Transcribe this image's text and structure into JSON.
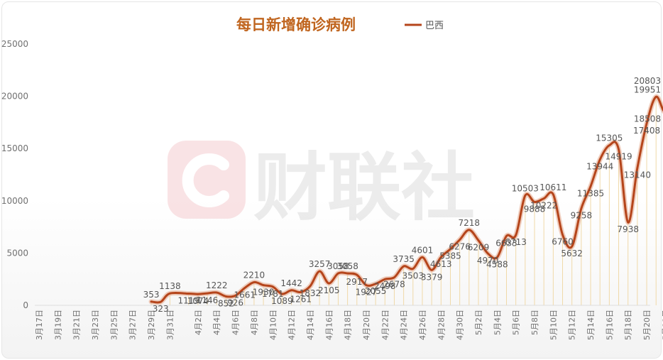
{
  "chart_data": {
    "type": "line",
    "title": "每日新增确诊病例",
    "legend": "top-right",
    "grid": false,
    "series": [
      {
        "name": "巴西"
      }
    ],
    "ylim": [
      0,
      25000
    ],
    "yticks": [
      "0",
      "5000",
      "10000",
      "15000",
      "20000",
      "25000"
    ],
    "x_tick_labels": [
      "3月17日",
      "3月19日",
      "3月21日",
      "3月23日",
      "3月25日",
      "3月27日",
      "3月29日",
      "3月31日",
      "4月2日",
      "4月4日",
      "4月6日",
      "4月8日",
      "4月10日",
      "4月12日",
      "4月14日",
      "4月16日",
      "4月18日",
      "4月20日",
      "4月22日",
      "4月24日",
      "4月26日",
      "4月28日",
      "4月30日",
      "5月2日",
      "5月4日",
      "5月6日",
      "5月8日",
      "5月10日",
      "5月12日",
      "5月14日",
      "5月16日",
      "5月18日",
      "5月20日",
      "5月22日"
    ],
    "points": [
      {
        "x": "3月29日",
        "y": 353
      },
      {
        "x": "3月30日",
        "y": 323
      },
      {
        "x": "3月31日",
        "y": 1138
      },
      {
        "x": "4月1日",
        "y": 1119
      },
      {
        "x": "4月2日",
        "y": 1074
      },
      {
        "x": "4月3日",
        "y": 1146
      },
      {
        "x": "4月4日",
        "y": 1222
      },
      {
        "x": "4月5日",
        "y": 852
      },
      {
        "x": "4月6日",
        "y": 926
      },
      {
        "x": "4月7日",
        "y": 1661
      },
      {
        "x": "4月8日",
        "y": 2210
      },
      {
        "x": "4月9日",
        "y": 1930
      },
      {
        "x": "4月10日",
        "y": 1781
      },
      {
        "x": "4月11日",
        "y": 1089
      },
      {
        "x": "4月12日",
        "y": 1442
      },
      {
        "x": "4月13日",
        "y": 1261
      },
      {
        "x": "4月14日",
        "y": 1832
      },
      {
        "x": "4月15日",
        "y": 3257
      },
      {
        "x": "4月16日",
        "y": 2105
      },
      {
        "x": "4月17日",
        "y": 3058
      },
      {
        "x": "4月18日",
        "y": 3058
      },
      {
        "x": "4月19日",
        "y": 2917
      },
      {
        "x": "4月20日",
        "y": 1927
      },
      {
        "x": "4月21日",
        "y": 2055
      },
      {
        "x": "4月22日",
        "y": 2498
      },
      {
        "x": "4月23日",
        "y": 2678
      },
      {
        "x": "4月24日",
        "y": 3735
      },
      {
        "x": "4月25日",
        "y": 3503
      },
      {
        "x": "4月26日",
        "y": 4601
      },
      {
        "x": "4月27日",
        "y": 3379
      },
      {
        "x": "4月28日",
        "y": 4613
      },
      {
        "x": "4月29日",
        "y": 5385
      },
      {
        "x": "4月30日",
        "y": 6276
      },
      {
        "x": "5月1日",
        "y": 7218
      },
      {
        "x": "5月2日",
        "y": 6209
      },
      {
        "x": "5月3日",
        "y": 4970
      },
      {
        "x": "5月4日",
        "y": 4588
      },
      {
        "x": "5月5日",
        "y": 6633
      },
      {
        "x": "5月6日",
        "y": 6713
      },
      {
        "x": "5月7日",
        "y": 10503
      },
      {
        "x": "5月8日",
        "y": 9888
      },
      {
        "x": "5月9日",
        "y": 10222
      },
      {
        "x": "5月10日",
        "y": 10611
      },
      {
        "x": "5月11日",
        "y": 6760
      },
      {
        "x": "5月12日",
        "y": 5632
      },
      {
        "x": "5月13日",
        "y": 9258
      },
      {
        "x": "5月14日",
        "y": 11385
      },
      {
        "x": "5月15日",
        "y": 13944
      },
      {
        "x": "5月16日",
        "y": 15305
      },
      {
        "x": "5月17日",
        "y": 14919
      },
      {
        "x": "5月18日",
        "y": 7938
      },
      {
        "x": "5月19日",
        "y": 13140
      },
      {
        "x": "5月20日",
        "y": 17408
      },
      {
        "x": "5月21日",
        "y": 19951
      },
      {
        "x": "5月22日",
        "y": 18508
      },
      {
        "x": "5月23日",
        "y": 20803
      }
    ],
    "colors": {
      "line": "#b5451b",
      "title": "#c0651f",
      "drop_lines": "#f0d9a8",
      "labels": "#555555",
      "axis_text": "#707070"
    }
  },
  "watermark": {
    "brand": "财联社",
    "logo_icon": "cls-logo-icon"
  }
}
